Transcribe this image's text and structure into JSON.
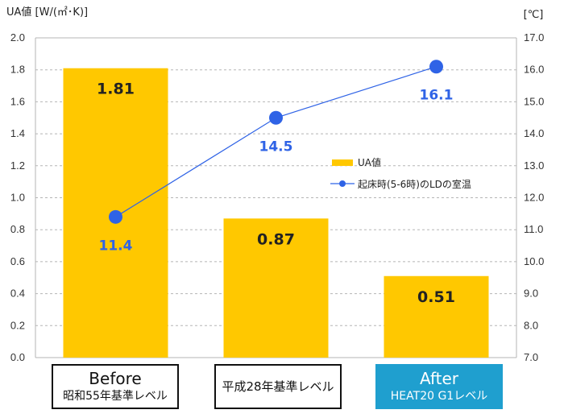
{
  "chart_data": {
    "type": "bar",
    "categories": [
      "Before",
      "平成28年基準レベル",
      "After"
    ],
    "series": [
      {
        "name": "UA値",
        "type": "bar",
        "axis": "left",
        "values": [
          1.81,
          0.87,
          0.51
        ],
        "value_labels": [
          "1.81",
          "0.87",
          "0.51"
        ],
        "color": "#ffc800"
      },
      {
        "name": "起床時(5-6時)のLDの室温",
        "type": "line",
        "axis": "right",
        "values": [
          11.4,
          14.5,
          16.1
        ],
        "value_labels": [
          "11.4",
          "14.5",
          "16.1"
        ],
        "color": "#2f63e6"
      }
    ],
    "ylabel": "UA値 [W/(㎡･K)]",
    "y2label": "[℃]",
    "ylim": [
      0,
      2.0
    ],
    "y2lim": [
      7.0,
      17.0
    ],
    "yticks": [
      "0.0",
      "0.2",
      "0.4",
      "0.6",
      "0.8",
      "1.0",
      "1.2",
      "1.4",
      "1.6",
      "1.8",
      "2.0"
    ],
    "y2ticks": [
      "7.0",
      "8.0",
      "9.0",
      "10.0",
      "11.0",
      "12.0",
      "13.0",
      "14.0",
      "15.0",
      "16.0",
      "17.0"
    ],
    "grid": true,
    "legend_position": "right-middle"
  },
  "category_boxes": [
    {
      "line1": "Before",
      "line2": "昭和55年基準レベル",
      "style": "white"
    },
    {
      "line1": "",
      "line2": "平成28年基準レベル",
      "style": "white"
    },
    {
      "line1": "After",
      "line2": "HEAT20 G1レベル",
      "style": "blue"
    }
  ]
}
